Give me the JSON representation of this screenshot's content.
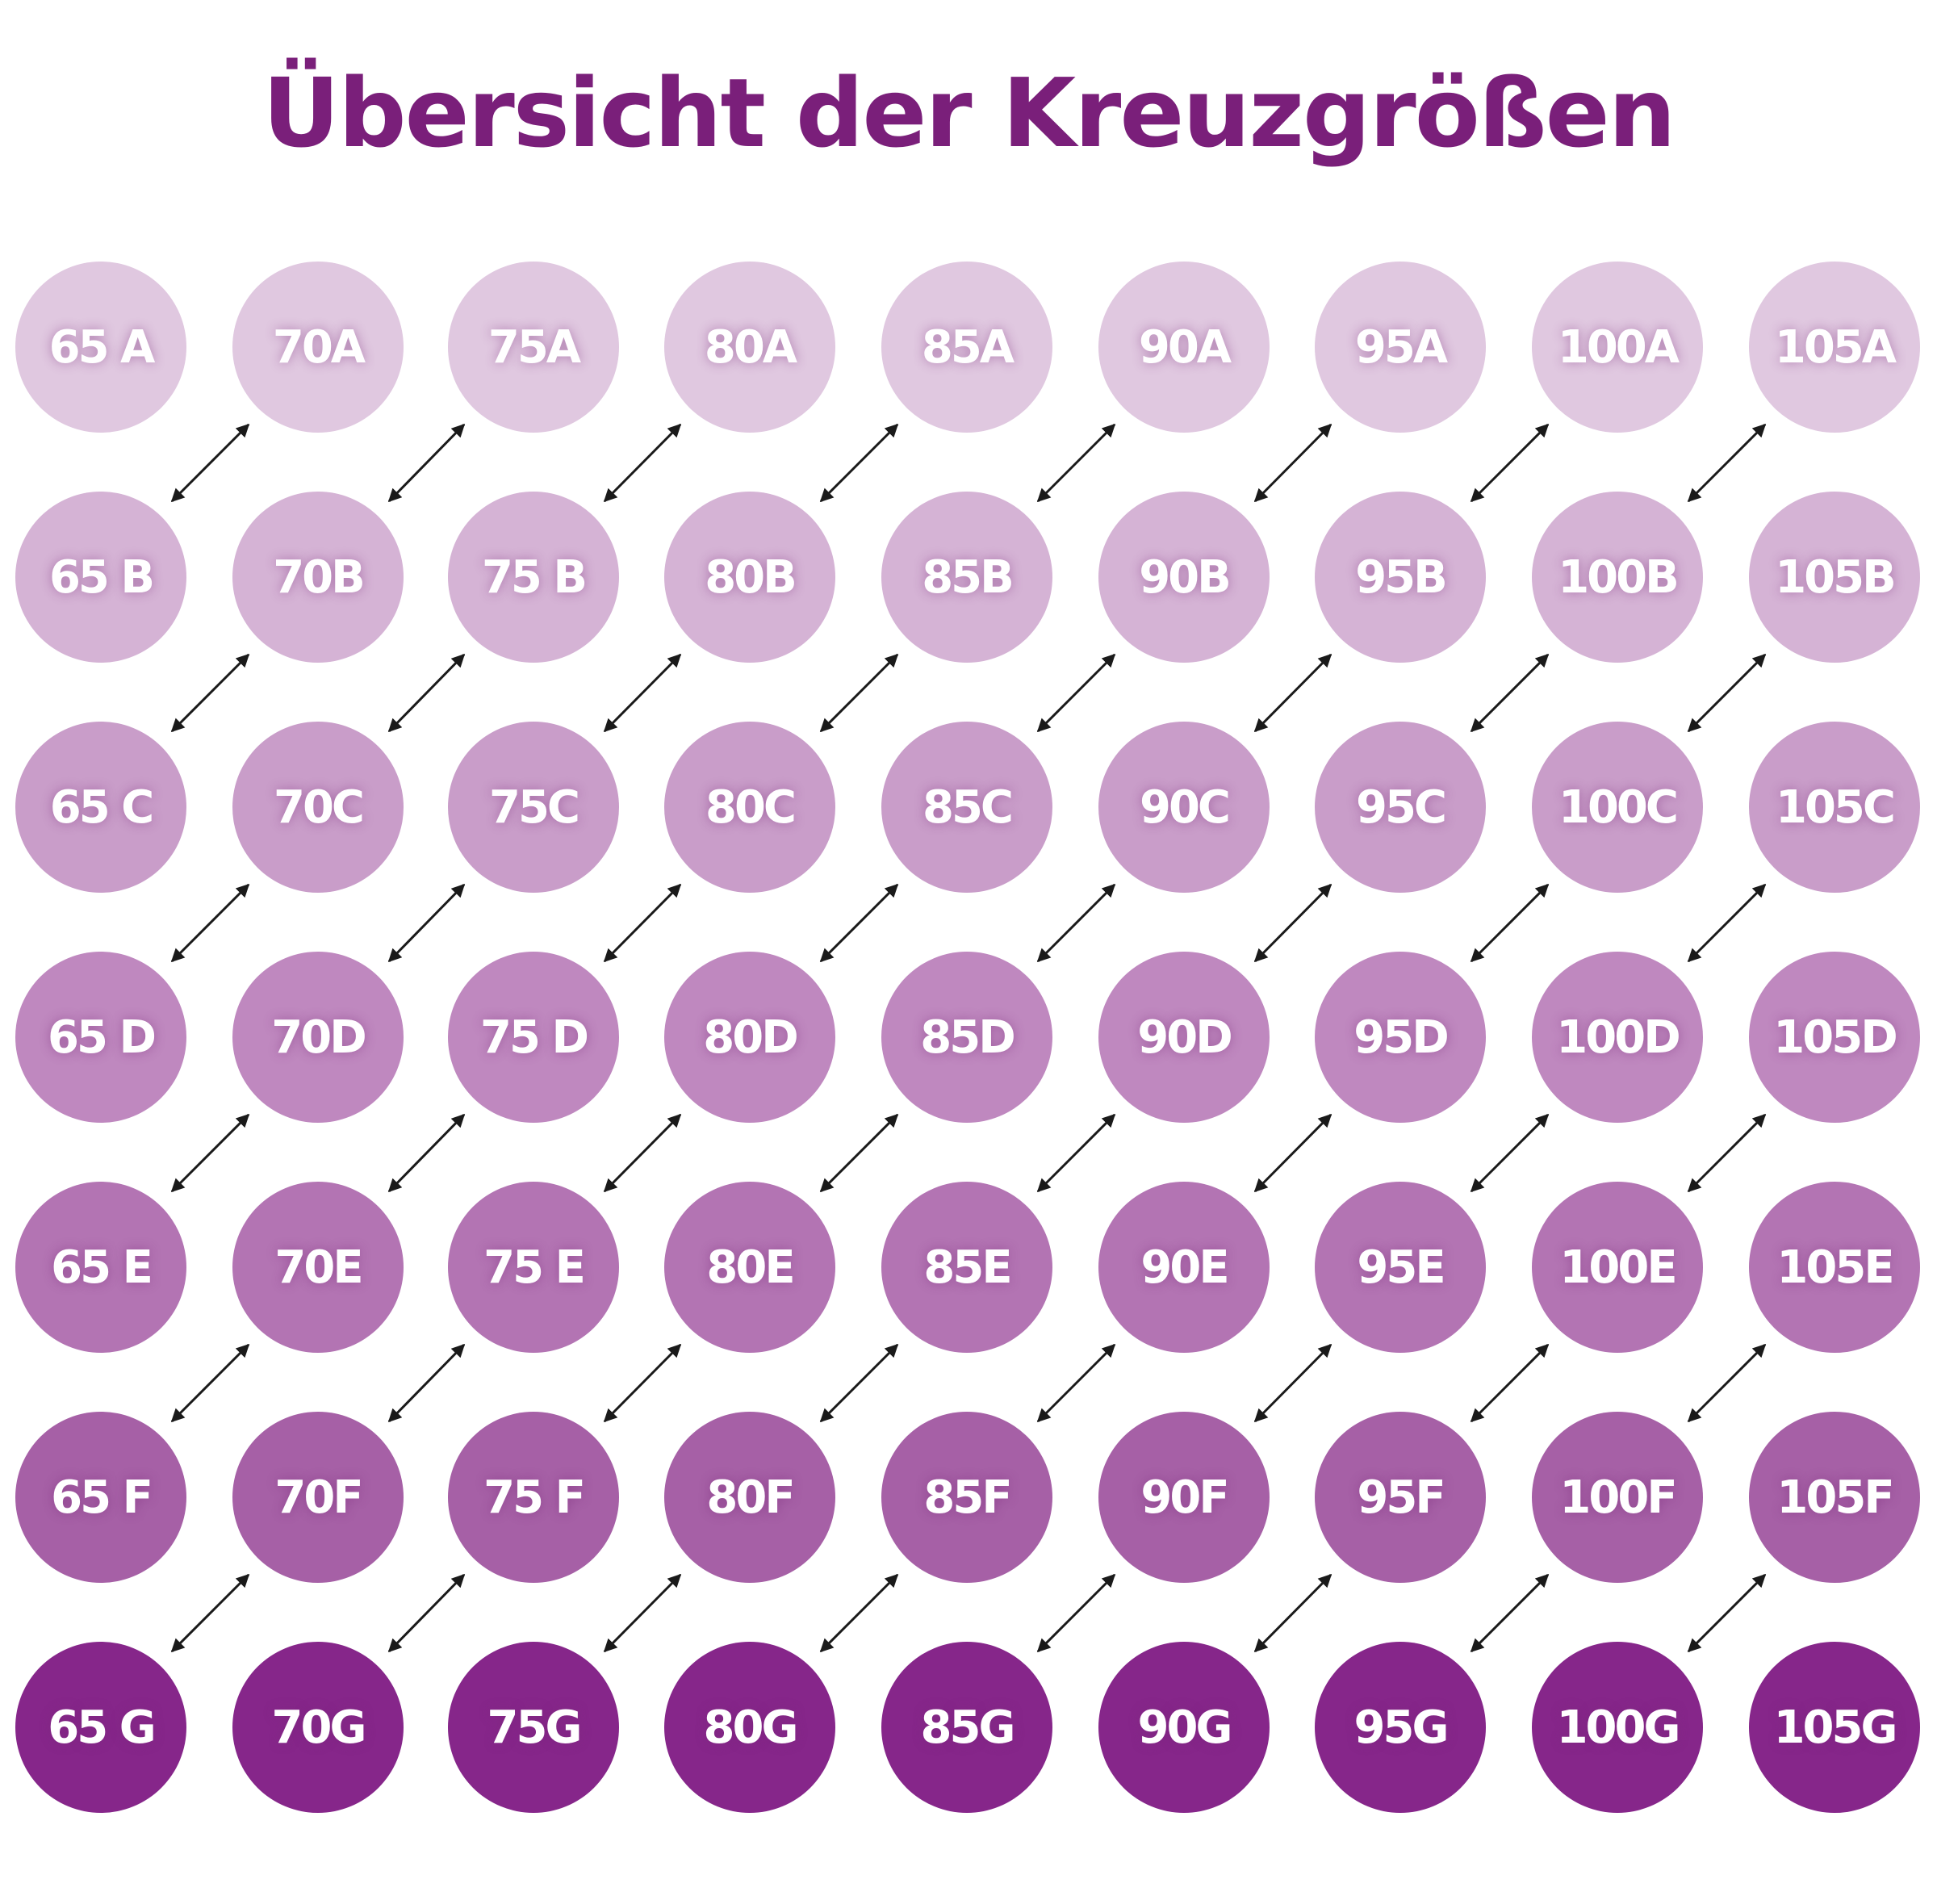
{
  "title": "Übersicht der Kreuzgrößen",
  "colors": {
    "title": "#7a1f7a",
    "label": "#ffffff",
    "arrow": "#1a1a1a",
    "rows": [
      "#e0c8e0",
      "#d5b3d5",
      "#c99dc9",
      "#bf88bf",
      "#b374b3",
      "#a660a6",
      "#86268a"
    ]
  },
  "band_sizes": [
    "65",
    "70",
    "75",
    "80",
    "85",
    "90",
    "95",
    "100",
    "105"
  ],
  "cup_sizes": [
    "A",
    "B",
    "C",
    "D",
    "E",
    "F",
    "G"
  ],
  "rows": [
    [
      "65 A",
      "70A",
      "75A",
      "80A",
      "85A",
      "90A",
      "95A",
      "100A",
      "105A"
    ],
    [
      "65 B",
      "70B",
      "75 B",
      "80B",
      "85B",
      "90B",
      "95B",
      "100B",
      "105B"
    ],
    [
      "65 C",
      "70C",
      "75C",
      "80C",
      "85C",
      "90C",
      "95C",
      "100C",
      "105C"
    ],
    [
      "65 D",
      "70D",
      "75 D",
      "80D",
      "85D",
      "90D",
      "95D",
      "100D",
      "105D"
    ],
    [
      "65 E",
      "70E",
      "75 E",
      "80E",
      "85E",
      "90E",
      "95E",
      "100E",
      "105E"
    ],
    [
      "65 F",
      "70F",
      "75 F",
      "80F",
      "85F",
      "90F",
      "95F",
      "100F",
      "105F"
    ],
    [
      "65 G",
      "70G",
      "75G",
      "80G",
      "85G",
      "90G",
      "95G",
      "100G",
      "105G"
    ]
  ],
  "connections": "each size is linked by a double-headed arrow to the size one cup larger and one band smaller (sister sizes)"
}
